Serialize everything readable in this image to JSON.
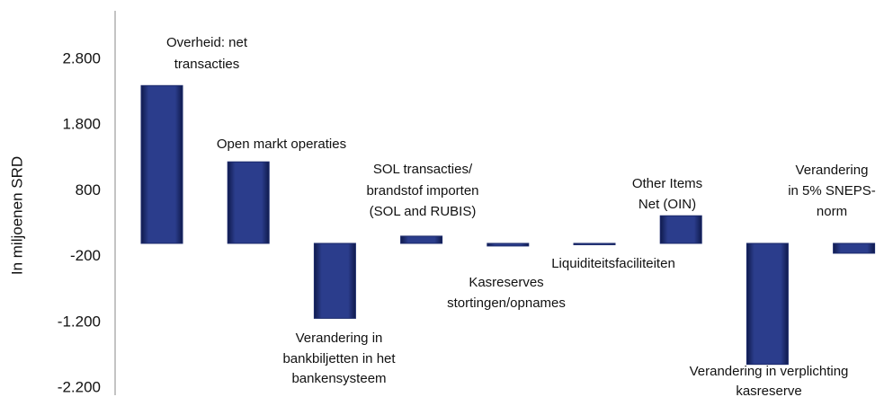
{
  "chart_data": {
    "type": "bar",
    "y_label": "In miljoenen SRD",
    "categories": [
      [
        "Overheid: net",
        "transacties"
      ],
      [
        "Open markt operaties"
      ],
      [
        "Verandering in",
        "bankbiljetten in het",
        "bankensysteem"
      ],
      [
        "SOL transacties/",
        "brandstof importen",
        "(SOL and RUBIS)"
      ],
      [
        "Kasreserves",
        "stortingen/opnames"
      ],
      [
        "Liquiditeitsfaciliteiten"
      ],
      [
        "Other Items",
        "Net (OIN)"
      ],
      [
        "Verandering in verplichting",
        "kasreserve"
      ],
      [
        "Verandering",
        "in 5% SNEPS-",
        "norm"
      ]
    ],
    "values": [
      2400,
      1240,
      -1140,
      110,
      -40,
      -10,
      420,
      -1840,
      -150
    ],
    "color": "#1c2a6b",
    "ylim": [
      -2200,
      2800
    ],
    "yticks": [
      {
        "value": -2200,
        "label": "-2.200"
      },
      {
        "value": -1200,
        "label": "-1.200"
      },
      -200,
      800,
      {
        "value": 1800,
        "label": "1.800"
      },
      {
        "value": 2800,
        "label": "2.800"
      }
    ]
  }
}
